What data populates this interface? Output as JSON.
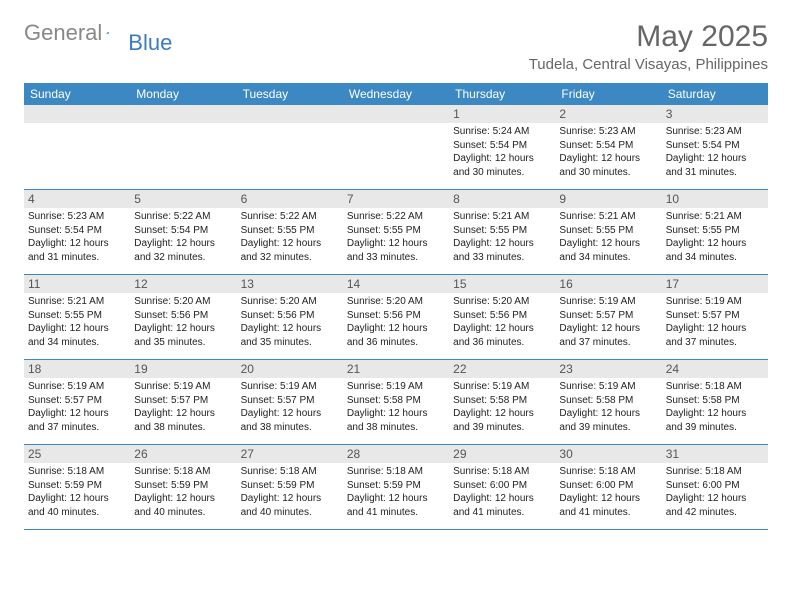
{
  "brand": {
    "part1": "General",
    "part2": "Blue"
  },
  "title": "May 2025",
  "location": "Tudela, Central Visayas, Philippines",
  "weekday_header_bg": "#3b88c3",
  "weekday_header_fg": "#ffffff",
  "daynum_bar_bg": "#e8e8e8",
  "row_border_color": "#3b88c3",
  "text_color": "#222222",
  "weekdays": [
    "Sunday",
    "Monday",
    "Tuesday",
    "Wednesday",
    "Thursday",
    "Friday",
    "Saturday"
  ],
  "weeks": [
    [
      {
        "sunrise": "",
        "sunset": "",
        "daylight": ""
      },
      {
        "sunrise": "",
        "sunset": "",
        "daylight": ""
      },
      {
        "sunrise": "",
        "sunset": "",
        "daylight": ""
      },
      {
        "sunrise": "",
        "sunset": "",
        "daylight": ""
      },
      {
        "day": "1",
        "sunrise": "Sunrise: 5:24 AM",
        "sunset": "Sunset: 5:54 PM",
        "daylight": "Daylight: 12 hours and 30 minutes."
      },
      {
        "day": "2",
        "sunrise": "Sunrise: 5:23 AM",
        "sunset": "Sunset: 5:54 PM",
        "daylight": "Daylight: 12 hours and 30 minutes."
      },
      {
        "day": "3",
        "sunrise": "Sunrise: 5:23 AM",
        "sunset": "Sunset: 5:54 PM",
        "daylight": "Daylight: 12 hours and 31 minutes."
      }
    ],
    [
      {
        "day": "4",
        "sunrise": "Sunrise: 5:23 AM",
        "sunset": "Sunset: 5:54 PM",
        "daylight": "Daylight: 12 hours and 31 minutes."
      },
      {
        "day": "5",
        "sunrise": "Sunrise: 5:22 AM",
        "sunset": "Sunset: 5:54 PM",
        "daylight": "Daylight: 12 hours and 32 minutes."
      },
      {
        "day": "6",
        "sunrise": "Sunrise: 5:22 AM",
        "sunset": "Sunset: 5:55 PM",
        "daylight": "Daylight: 12 hours and 32 minutes."
      },
      {
        "day": "7",
        "sunrise": "Sunrise: 5:22 AM",
        "sunset": "Sunset: 5:55 PM",
        "daylight": "Daylight: 12 hours and 33 minutes."
      },
      {
        "day": "8",
        "sunrise": "Sunrise: 5:21 AM",
        "sunset": "Sunset: 5:55 PM",
        "daylight": "Daylight: 12 hours and 33 minutes."
      },
      {
        "day": "9",
        "sunrise": "Sunrise: 5:21 AM",
        "sunset": "Sunset: 5:55 PM",
        "daylight": "Daylight: 12 hours and 34 minutes."
      },
      {
        "day": "10",
        "sunrise": "Sunrise: 5:21 AM",
        "sunset": "Sunset: 5:55 PM",
        "daylight": "Daylight: 12 hours and 34 minutes."
      }
    ],
    [
      {
        "day": "11",
        "sunrise": "Sunrise: 5:21 AM",
        "sunset": "Sunset: 5:55 PM",
        "daylight": "Daylight: 12 hours and 34 minutes."
      },
      {
        "day": "12",
        "sunrise": "Sunrise: 5:20 AM",
        "sunset": "Sunset: 5:56 PM",
        "daylight": "Daylight: 12 hours and 35 minutes."
      },
      {
        "day": "13",
        "sunrise": "Sunrise: 5:20 AM",
        "sunset": "Sunset: 5:56 PM",
        "daylight": "Daylight: 12 hours and 35 minutes."
      },
      {
        "day": "14",
        "sunrise": "Sunrise: 5:20 AM",
        "sunset": "Sunset: 5:56 PM",
        "daylight": "Daylight: 12 hours and 36 minutes."
      },
      {
        "day": "15",
        "sunrise": "Sunrise: 5:20 AM",
        "sunset": "Sunset: 5:56 PM",
        "daylight": "Daylight: 12 hours and 36 minutes."
      },
      {
        "day": "16",
        "sunrise": "Sunrise: 5:19 AM",
        "sunset": "Sunset: 5:57 PM",
        "daylight": "Daylight: 12 hours and 37 minutes."
      },
      {
        "day": "17",
        "sunrise": "Sunrise: 5:19 AM",
        "sunset": "Sunset: 5:57 PM",
        "daylight": "Daylight: 12 hours and 37 minutes."
      }
    ],
    [
      {
        "day": "18",
        "sunrise": "Sunrise: 5:19 AM",
        "sunset": "Sunset: 5:57 PM",
        "daylight": "Daylight: 12 hours and 37 minutes."
      },
      {
        "day": "19",
        "sunrise": "Sunrise: 5:19 AM",
        "sunset": "Sunset: 5:57 PM",
        "daylight": "Daylight: 12 hours and 38 minutes."
      },
      {
        "day": "20",
        "sunrise": "Sunrise: 5:19 AM",
        "sunset": "Sunset: 5:57 PM",
        "daylight": "Daylight: 12 hours and 38 minutes."
      },
      {
        "day": "21",
        "sunrise": "Sunrise: 5:19 AM",
        "sunset": "Sunset: 5:58 PM",
        "daylight": "Daylight: 12 hours and 38 minutes."
      },
      {
        "day": "22",
        "sunrise": "Sunrise: 5:19 AM",
        "sunset": "Sunset: 5:58 PM",
        "daylight": "Daylight: 12 hours and 39 minutes."
      },
      {
        "day": "23",
        "sunrise": "Sunrise: 5:19 AM",
        "sunset": "Sunset: 5:58 PM",
        "daylight": "Daylight: 12 hours and 39 minutes."
      },
      {
        "day": "24",
        "sunrise": "Sunrise: 5:18 AM",
        "sunset": "Sunset: 5:58 PM",
        "daylight": "Daylight: 12 hours and 39 minutes."
      }
    ],
    [
      {
        "day": "25",
        "sunrise": "Sunrise: 5:18 AM",
        "sunset": "Sunset: 5:59 PM",
        "daylight": "Daylight: 12 hours and 40 minutes."
      },
      {
        "day": "26",
        "sunrise": "Sunrise: 5:18 AM",
        "sunset": "Sunset: 5:59 PM",
        "daylight": "Daylight: 12 hours and 40 minutes."
      },
      {
        "day": "27",
        "sunrise": "Sunrise: 5:18 AM",
        "sunset": "Sunset: 5:59 PM",
        "daylight": "Daylight: 12 hours and 40 minutes."
      },
      {
        "day": "28",
        "sunrise": "Sunrise: 5:18 AM",
        "sunset": "Sunset: 5:59 PM",
        "daylight": "Daylight: 12 hours and 41 minutes."
      },
      {
        "day": "29",
        "sunrise": "Sunrise: 5:18 AM",
        "sunset": "Sunset: 6:00 PM",
        "daylight": "Daylight: 12 hours and 41 minutes."
      },
      {
        "day": "30",
        "sunrise": "Sunrise: 5:18 AM",
        "sunset": "Sunset: 6:00 PM",
        "daylight": "Daylight: 12 hours and 41 minutes."
      },
      {
        "day": "31",
        "sunrise": "Sunrise: 5:18 AM",
        "sunset": "Sunset: 6:00 PM",
        "daylight": "Daylight: 12 hours and 42 minutes."
      }
    ]
  ]
}
